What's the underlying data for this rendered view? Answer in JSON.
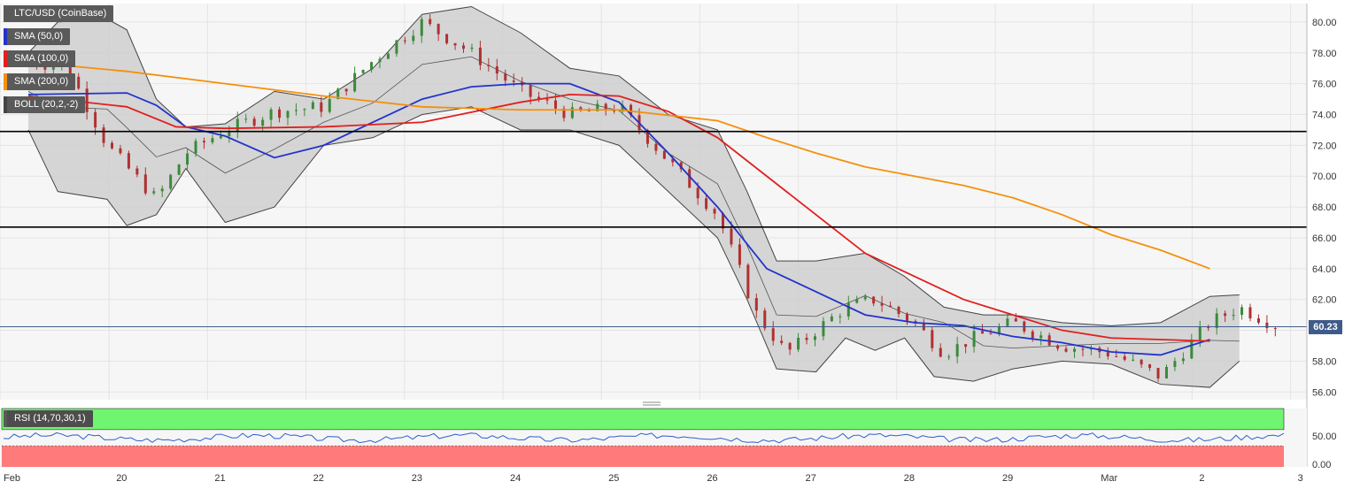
{
  "chart_data": [
    {
      "type": "candlestick",
      "title": "LTC/USD (CoinBase)",
      "ylim": [
        55.5,
        81.2
      ],
      "yticks": [
        "80.00",
        "78.00",
        "76.00",
        "74.00",
        "72.00",
        "70.00",
        "68.00",
        "66.00",
        "64.00",
        "62.00",
        "60.00",
        "58.00",
        "56.00"
      ],
      "xticks": [
        "Feb",
        "20",
        "21",
        "22",
        "23",
        "24",
        "25",
        "26",
        "27",
        "28",
        "29",
        "Mar",
        "2",
        "3"
      ],
      "current_price": "60.23",
      "horizontal_lines": [
        72.9,
        66.7
      ],
      "indicators": [
        {
          "name": "SMA (50,0)",
          "color": "#2233cc",
          "points": [
            [
              0,
              75.3
            ],
            [
              1,
              75.4
            ],
            [
              1.3,
              74.6
            ],
            [
              1.6,
              73.2
            ],
            [
              2,
              72.6
            ],
            [
              2.5,
              71.2
            ],
            [
              3,
              72.0
            ],
            [
              3.5,
              73.5
            ],
            [
              4,
              75.0
            ],
            [
              4.5,
              75.8
            ],
            [
              5,
              76.0
            ],
            [
              5.5,
              76.0
            ],
            [
              6,
              74.8
            ],
            [
              6.5,
              71.5
            ],
            [
              7,
              68.0
            ],
            [
              7.5,
              64.0
            ],
            [
              8,
              62.5
            ],
            [
              8.5,
              61.0
            ],
            [
              9,
              60.5
            ],
            [
              9.5,
              60.3
            ],
            [
              10,
              59.6
            ],
            [
              10.5,
              59.2
            ],
            [
              11,
              58.6
            ],
            [
              11.5,
              58.4
            ],
            [
              12,
              59.4
            ]
          ]
        },
        {
          "name": "SMA (100,0)",
          "color": "#e02020",
          "points": [
            [
              0,
              75.2
            ],
            [
              1,
              74.5
            ],
            [
              1.5,
              73.2
            ],
            [
              2,
              73.1
            ],
            [
              3,
              73.2
            ],
            [
              4,
              73.5
            ],
            [
              5,
              74.8
            ],
            [
              5.5,
              75.3
            ],
            [
              6,
              75.2
            ],
            [
              6.5,
              74.2
            ],
            [
              7,
              72.5
            ],
            [
              7.5,
              70.0
            ],
            [
              8,
              67.5
            ],
            [
              8.5,
              65.0
            ],
            [
              9,
              63.5
            ],
            [
              9.5,
              62.0
            ],
            [
              10,
              61.0
            ],
            [
              10.5,
              60.0
            ],
            [
              11,
              59.5
            ],
            [
              11.5,
              59.4
            ],
            [
              12,
              59.3
            ]
          ]
        },
        {
          "name": "SMA (200,0)",
          "color": "#f5900a",
          "points": [
            [
              0,
              77.4
            ],
            [
              1,
              76.8
            ],
            [
              2,
              76.0
            ],
            [
              3,
              75.2
            ],
            [
              4,
              74.5
            ],
            [
              5,
              74.3
            ],
            [
              6,
              74.3
            ],
            [
              7,
              73.6
            ],
            [
              7.5,
              72.5
            ],
            [
              8,
              71.5
            ],
            [
              8.5,
              70.6
            ],
            [
              9,
              70.0
            ],
            [
              9.5,
              69.4
            ],
            [
              10,
              68.6
            ],
            [
              10.5,
              67.5
            ],
            [
              11,
              66.2
            ],
            [
              11.5,
              65.2
            ],
            [
              12,
              64.0
            ]
          ]
        },
        {
          "name": "BOLL (20,2,-2)",
          "color": "#444444",
          "upper": [
            [
              0,
              78.0
            ],
            [
              0.3,
              80.0
            ],
            [
              0.8,
              80.2
            ],
            [
              1,
              79.5
            ],
            [
              1.3,
              75.0
            ],
            [
              1.6,
              73.2
            ],
            [
              2,
              73.4
            ],
            [
              2.5,
              75.5
            ],
            [
              3,
              75.0
            ],
            [
              3.5,
              77.0
            ],
            [
              4,
              80.5
            ],
            [
              4.5,
              81.0
            ],
            [
              5,
              79.3
            ],
            [
              5.5,
              77.0
            ],
            [
              6,
              76.5
            ],
            [
              6.5,
              74.0
            ],
            [
              7,
              73.0
            ],
            [
              7.3,
              69.0
            ],
            [
              7.6,
              64.5
            ],
            [
              8,
              64.5
            ],
            [
              8.5,
              65.0
            ],
            [
              8.9,
              63.5
            ],
            [
              9.3,
              61.5
            ],
            [
              9.7,
              61.0
            ],
            [
              10,
              61.0
            ],
            [
              10.5,
              60.5
            ],
            [
              11,
              60.3
            ],
            [
              11.5,
              60.5
            ],
            [
              12,
              62.2
            ],
            [
              12.3,
              62.3
            ]
          ],
          "lower": [
            [
              0,
              73.0
            ],
            [
              0.3,
              69.0
            ],
            [
              0.8,
              68.5
            ],
            [
              1,
              66.8
            ],
            [
              1.3,
              67.5
            ],
            [
              1.6,
              70.5
            ],
            [
              2,
              67.0
            ],
            [
              2.5,
              68.0
            ],
            [
              3,
              72.0
            ],
            [
              3.5,
              72.5
            ],
            [
              4,
              74.0
            ],
            [
              4.5,
              74.5
            ],
            [
              5,
              73.0
            ],
            [
              5.5,
              73.0
            ],
            [
              6,
              72.0
            ],
            [
              6.5,
              69.0
            ],
            [
              7,
              66.0
            ],
            [
              7.3,
              62.0
            ],
            [
              7.6,
              57.5
            ],
            [
              8,
              57.3
            ],
            [
              8.3,
              59.5
            ],
            [
              8.6,
              58.7
            ],
            [
              8.9,
              59.5
            ],
            [
              9.2,
              57.0
            ],
            [
              9.6,
              56.7
            ],
            [
              10,
              57.5
            ],
            [
              10.5,
              58.0
            ],
            [
              11,
              57.8
            ],
            [
              11.5,
              56.5
            ],
            [
              12,
              56.3
            ],
            [
              12.3,
              58.0
            ]
          ]
        }
      ]
    },
    {
      "type": "line",
      "title": "RSI (14,70,30,1)",
      "yticks": [
        "50.00",
        "0.00"
      ],
      "ylim": [
        0,
        100
      ],
      "bands": {
        "overbought": 70,
        "oversold": 30
      },
      "overbought_color": "#6ff56f",
      "oversold_color": "#ff7a7a"
    }
  ]
}
